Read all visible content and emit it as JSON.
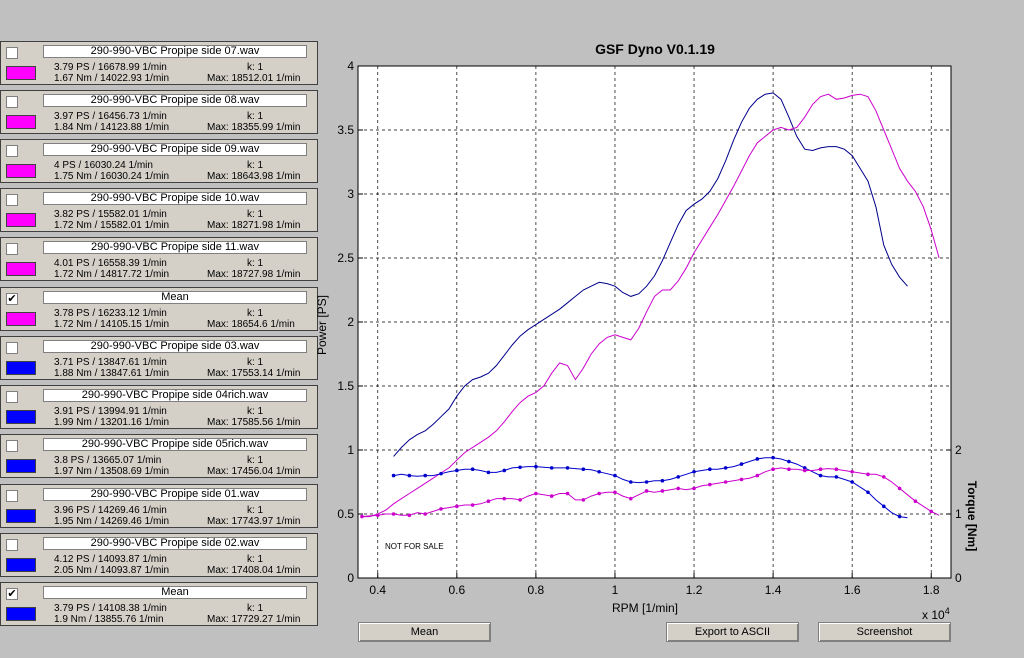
{
  "panels": [
    {
      "name": "290-990-VBC Propipe side 07.wav",
      "checked": false,
      "color": "#ff00ff",
      "line1": "3.79 PS / 16678.99 1/min",
      "line2": "1.67 Nm / 14022.93 1/min",
      "k": "k: 1",
      "max": "Max: 18512.01 1/min"
    },
    {
      "name": "290-990-VBC Propipe side 08.wav",
      "checked": false,
      "color": "#ff00ff",
      "line1": "3.97 PS / 16456.73 1/min",
      "line2": "1.84 Nm / 14123.88 1/min",
      "k": "k: 1",
      "max": "Max: 18355.99 1/min"
    },
    {
      "name": "290-990-VBC Propipe side 09.wav",
      "checked": false,
      "color": "#ff00ff",
      "line1": "4 PS / 16030.24 1/min",
      "line2": "1.75 Nm / 16030.24 1/min",
      "k": "k: 1",
      "max": "Max: 18643.98 1/min"
    },
    {
      "name": "290-990-VBC Propipe side 10.wav",
      "checked": false,
      "color": "#ff00ff",
      "line1": "3.82 PS / 15582.01 1/min",
      "line2": "1.72 Nm / 15582.01 1/min",
      "k": "k: 1",
      "max": "Max: 18271.98 1/min"
    },
    {
      "name": "290-990-VBC Propipe side 11.wav",
      "checked": false,
      "color": "#ff00ff",
      "line1": "4.01 PS / 16558.39 1/min",
      "line2": "1.72 Nm / 14817.72 1/min",
      "k": "k: 1",
      "max": "Max: 18727.98 1/min"
    },
    {
      "name": "Mean",
      "checked": true,
      "color": "#ff00ff",
      "line1": "3.78 PS / 16233.12 1/min",
      "line2": "1.72 Nm / 14105.15 1/min",
      "k": "k: 1",
      "max": "Max: 18654.6 1/min"
    },
    {
      "name": "290-990-VBC Propipe side 03.wav",
      "checked": false,
      "color": "#0000ff",
      "line1": "3.71 PS / 13847.61 1/min",
      "line2": "1.88 Nm / 13847.61 1/min",
      "k": "k: 1",
      "max": "Max: 17553.14 1/min"
    },
    {
      "name": "290-990-VBC Propipe side 04rich.wav",
      "checked": false,
      "color": "#0000ff",
      "line1": "3.91 PS / 13994.91 1/min",
      "line2": "1.99 Nm / 13201.16 1/min",
      "k": "k: 1",
      "max": "Max: 17585.56 1/min"
    },
    {
      "name": "290-990-VBC Propipe side 05rich.wav",
      "checked": false,
      "color": "#0000ff",
      "line1": "3.8 PS / 13665.07 1/min",
      "line2": "1.97 Nm / 13508.69 1/min",
      "k": "k: 1",
      "max": "Max: 17456.04 1/min"
    },
    {
      "name": "290-990-VBC Propipe side 01.wav",
      "checked": false,
      "color": "#0000ff",
      "line1": "3.96 PS / 14269.46 1/min",
      "line2": "1.95 Nm / 14269.46 1/min",
      "k": "k: 1",
      "max": "Max: 17743.97 1/min"
    },
    {
      "name": "290-990-VBC Propipe side 02.wav",
      "checked": false,
      "color": "#0000ff",
      "line1": "4.12 PS / 14093.87 1/min",
      "line2": "2.05 Nm / 14093.87 1/min",
      "k": "k: 1",
      "max": "Max: 17408.04 1/min"
    },
    {
      "name": "Mean",
      "checked": true,
      "color": "#0000ff",
      "line1": "3.79 PS / 14108.38 1/min",
      "line2": "1.9 Nm / 13855.76 1/min",
      "k": "k: 1",
      "max": "Max: 17729.27 1/min"
    }
  ],
  "buttons": {
    "mean": "Mean",
    "export": "Export to ASCII",
    "screenshot": "Screenshot"
  },
  "watermark": "NOT FOR SALE",
  "chart_data": {
    "type": "line",
    "title": "GSF Dyno V0.1.19",
    "xlabel": "RPM [1/min]",
    "x_exponent": "x 10",
    "x_exponent_power": "4",
    "ylabel": "Power [PS]",
    "y2label": "Torque [Nm]",
    "xlim": [
      0.35,
      1.85
    ],
    "ylim": [
      0,
      4
    ],
    "y2lim": [
      0,
      8
    ],
    "xticks": [
      "0.4",
      "0.6",
      "0.8",
      "1",
      "1.2",
      "1.4",
      "1.6",
      "1.8"
    ],
    "yticks": [
      "0",
      "0.5",
      "1",
      "1.5",
      "2",
      "2.5",
      "3",
      "3.5",
      "4"
    ],
    "y2ticks": [
      "0",
      "1",
      "2"
    ],
    "grid": true,
    "series": [
      {
        "color": "#00008b",
        "axis": "power",
        "x": [
          0.44,
          0.46,
          0.48,
          0.5,
          0.52,
          0.54,
          0.56,
          0.58,
          0.6,
          0.62,
          0.64,
          0.66,
          0.68,
          0.7,
          0.72,
          0.74,
          0.76,
          0.78,
          0.8,
          0.82,
          0.84,
          0.86,
          0.88,
          0.9,
          0.92,
          0.94,
          0.96,
          0.98,
          1.0,
          1.02,
          1.04,
          1.06,
          1.08,
          1.1,
          1.12,
          1.14,
          1.16,
          1.18,
          1.2,
          1.22,
          1.24,
          1.26,
          1.28,
          1.3,
          1.32,
          1.34,
          1.36,
          1.38,
          1.4,
          1.42,
          1.44,
          1.46,
          1.48,
          1.5,
          1.52,
          1.54,
          1.56,
          1.58,
          1.6,
          1.62,
          1.64,
          1.66,
          1.68,
          1.7,
          1.72,
          1.74
        ],
        "y": [
          0.95,
          1.02,
          1.08,
          1.12,
          1.15,
          1.2,
          1.26,
          1.32,
          1.42,
          1.5,
          1.55,
          1.57,
          1.6,
          1.66,
          1.74,
          1.82,
          1.89,
          1.94,
          1.98,
          2.02,
          2.06,
          2.1,
          2.15,
          2.2,
          2.25,
          2.28,
          2.31,
          2.3,
          2.28,
          2.23,
          2.2,
          2.22,
          2.28,
          2.36,
          2.48,
          2.62,
          2.76,
          2.87,
          2.92,
          2.96,
          3.02,
          3.12,
          3.26,
          3.42,
          3.56,
          3.67,
          3.74,
          3.78,
          3.79,
          3.74,
          3.6,
          3.45,
          3.35,
          3.34,
          3.36,
          3.37,
          3.37,
          3.35,
          3.3,
          3.2,
          3.1,
          2.9,
          2.6,
          2.45,
          2.35,
          2.28
        ]
      },
      {
        "color": "#cc00cc",
        "axis": "power",
        "x": [
          0.36,
          0.38,
          0.4,
          0.42,
          0.44,
          0.46,
          0.48,
          0.5,
          0.52,
          0.54,
          0.56,
          0.58,
          0.6,
          0.62,
          0.64,
          0.66,
          0.68,
          0.7,
          0.72,
          0.74,
          0.76,
          0.78,
          0.8,
          0.82,
          0.84,
          0.86,
          0.88,
          0.9,
          0.92,
          0.94,
          0.96,
          0.98,
          1.0,
          1.02,
          1.04,
          1.06,
          1.08,
          1.1,
          1.12,
          1.14,
          1.16,
          1.18,
          1.2,
          1.22,
          1.24,
          1.26,
          1.28,
          1.3,
          1.32,
          1.34,
          1.36,
          1.38,
          1.4,
          1.42,
          1.44,
          1.46,
          1.48,
          1.5,
          1.52,
          1.54,
          1.56,
          1.58,
          1.6,
          1.62,
          1.64,
          1.66,
          1.68,
          1.7,
          1.72,
          1.74,
          1.76,
          1.78,
          1.8,
          1.82
        ],
        "y": [
          0.48,
          0.48,
          0.5,
          0.53,
          0.58,
          0.62,
          0.66,
          0.7,
          0.74,
          0.78,
          0.82,
          0.86,
          0.92,
          0.98,
          1.02,
          1.06,
          1.1,
          1.15,
          1.22,
          1.3,
          1.37,
          1.42,
          1.45,
          1.5,
          1.6,
          1.68,
          1.66,
          1.55,
          1.64,
          1.75,
          1.83,
          1.88,
          1.9,
          1.88,
          1.86,
          1.95,
          2.08,
          2.2,
          2.25,
          2.25,
          2.32,
          2.42,
          2.54,
          2.64,
          2.74,
          2.84,
          2.95,
          3.06,
          3.18,
          3.3,
          3.4,
          3.45,
          3.5,
          3.52,
          3.5,
          3.52,
          3.6,
          3.7,
          3.76,
          3.78,
          3.74,
          3.75,
          3.77,
          3.78,
          3.76,
          3.65,
          3.5,
          3.35,
          3.2,
          3.1,
          3.02,
          2.9,
          2.72,
          2.5
        ]
      },
      {
        "color": "#0000cc",
        "axis": "torque",
        "markers": true,
        "x": [
          0.44,
          0.46,
          0.48,
          0.5,
          0.52,
          0.54,
          0.56,
          0.58,
          0.6,
          0.62,
          0.64,
          0.66,
          0.68,
          0.7,
          0.72,
          0.74,
          0.76,
          0.78,
          0.8,
          0.82,
          0.84,
          0.86,
          0.88,
          0.9,
          0.92,
          0.94,
          0.96,
          0.98,
          1.0,
          1.02,
          1.04,
          1.06,
          1.08,
          1.1,
          1.12,
          1.14,
          1.16,
          1.18,
          1.2,
          1.22,
          1.24,
          1.26,
          1.28,
          1.3,
          1.32,
          1.34,
          1.36,
          1.38,
          1.4,
          1.42,
          1.44,
          1.46,
          1.48,
          1.5,
          1.52,
          1.54,
          1.56,
          1.58,
          1.6,
          1.62,
          1.64,
          1.66,
          1.68,
          1.7,
          1.72,
          1.74
        ],
        "y": [
          1.6,
          1.62,
          1.6,
          1.59,
          1.6,
          1.6,
          1.63,
          1.66,
          1.68,
          1.7,
          1.7,
          1.68,
          1.65,
          1.65,
          1.68,
          1.72,
          1.73,
          1.74,
          1.74,
          1.73,
          1.72,
          1.72,
          1.72,
          1.71,
          1.7,
          1.69,
          1.66,
          1.63,
          1.6,
          1.54,
          1.5,
          1.49,
          1.5,
          1.52,
          1.52,
          1.54,
          1.58,
          1.62,
          1.66,
          1.68,
          1.7,
          1.7,
          1.72,
          1.74,
          1.78,
          1.82,
          1.86,
          1.88,
          1.88,
          1.86,
          1.82,
          1.78,
          1.72,
          1.66,
          1.6,
          1.58,
          1.58,
          1.54,
          1.5,
          1.42,
          1.34,
          1.22,
          1.12,
          1.02,
          0.96,
          0.94
        ]
      },
      {
        "color": "#cc00cc",
        "axis": "torque",
        "markers": true,
        "x": [
          0.36,
          0.38,
          0.4,
          0.42,
          0.44,
          0.46,
          0.48,
          0.5,
          0.52,
          0.54,
          0.56,
          0.58,
          0.6,
          0.62,
          0.64,
          0.66,
          0.68,
          0.7,
          0.72,
          0.74,
          0.76,
          0.78,
          0.8,
          0.82,
          0.84,
          0.86,
          0.88,
          0.9,
          0.92,
          0.94,
          0.96,
          0.98,
          1.0,
          1.02,
          1.04,
          1.06,
          1.08,
          1.1,
          1.12,
          1.14,
          1.16,
          1.18,
          1.2,
          1.22,
          1.24,
          1.26,
          1.28,
          1.3,
          1.32,
          1.34,
          1.36,
          1.38,
          1.4,
          1.42,
          1.44,
          1.46,
          1.48,
          1.5,
          1.52,
          1.54,
          1.56,
          1.58,
          1.6,
          1.62,
          1.64,
          1.66,
          1.68,
          1.7,
          1.72,
          1.74,
          1.76,
          1.78,
          1.8,
          1.82
        ],
        "y": [
          0.96,
          0.97,
          0.98,
          1.0,
          1.0,
          0.98,
          0.98,
          1.02,
          1.0,
          1.04,
          1.08,
          1.1,
          1.12,
          1.14,
          1.14,
          1.16,
          1.2,
          1.24,
          1.24,
          1.24,
          1.22,
          1.28,
          1.32,
          1.3,
          1.28,
          1.32,
          1.32,
          1.22,
          1.22,
          1.28,
          1.32,
          1.34,
          1.34,
          1.28,
          1.24,
          1.3,
          1.36,
          1.34,
          1.36,
          1.38,
          1.4,
          1.38,
          1.4,
          1.44,
          1.46,
          1.48,
          1.5,
          1.52,
          1.54,
          1.56,
          1.6,
          1.66,
          1.7,
          1.72,
          1.7,
          1.7,
          1.68,
          1.68,
          1.7,
          1.71,
          1.7,
          1.68,
          1.66,
          1.64,
          1.62,
          1.62,
          1.58,
          1.5,
          1.4,
          1.3,
          1.2,
          1.12,
          1.04,
          0.98
        ]
      }
    ]
  }
}
